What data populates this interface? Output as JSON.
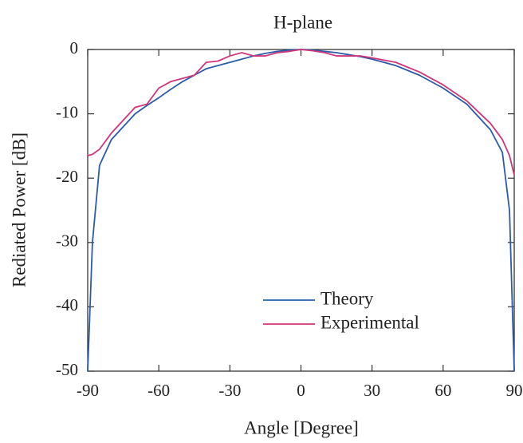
{
  "chart_data": {
    "type": "line",
    "title": "H-plane",
    "xlabel": "Angle [Degree]",
    "ylabel": "Rediated Power [dB]",
    "x": [
      -90,
      -88,
      -85,
      -80,
      -75,
      -70,
      -65,
      -60,
      -55,
      -50,
      -45,
      -40,
      -35,
      -30,
      -25,
      -20,
      -15,
      -10,
      -5,
      0,
      5,
      10,
      15,
      20,
      25,
      30,
      40,
      50,
      60,
      70,
      80,
      85,
      88,
      90
    ],
    "series": [
      {
        "name": "Theory",
        "color": "#2a5caa",
        "values": [
          -50,
          -30,
          -18,
          -14,
          -12,
          -10,
          -8.7,
          -7.5,
          -6.2,
          -5,
          -4,
          -3,
          -2.5,
          -2,
          -1.5,
          -1,
          -0.6,
          -0.3,
          -0.1,
          0,
          -0.1,
          -0.3,
          -0.5,
          -0.8,
          -1.1,
          -1.5,
          -2.5,
          -4,
          -6,
          -8.5,
          -12.5,
          -16,
          -25,
          -50
        ]
      },
      {
        "name": "Experimental",
        "color": "#d0357a",
        "values": [
          -16.5,
          -16.3,
          -15.5,
          -13,
          -11,
          -9,
          -8.5,
          -6,
          -5,
          -4.5,
          -4,
          -2,
          -1.8,
          -1,
          -0.5,
          -1,
          -1,
          -0.5,
          -0.3,
          0,
          -0.2,
          -0.5,
          -1,
          -1,
          -1,
          -1.3,
          -2,
          -3.5,
          -5.5,
          -8,
          -11.5,
          -14,
          -16.5,
          -19.5
        ]
      }
    ],
    "xlim": [
      -90,
      90
    ],
    "xticks": [
      -90,
      -60,
      -30,
      0,
      30,
      60,
      90
    ],
    "ylim": [
      -50,
      0
    ],
    "yticks": [
      0,
      -10,
      -20,
      -30,
      -40,
      -50
    ],
    "grid": false,
    "legend": "lower center"
  }
}
